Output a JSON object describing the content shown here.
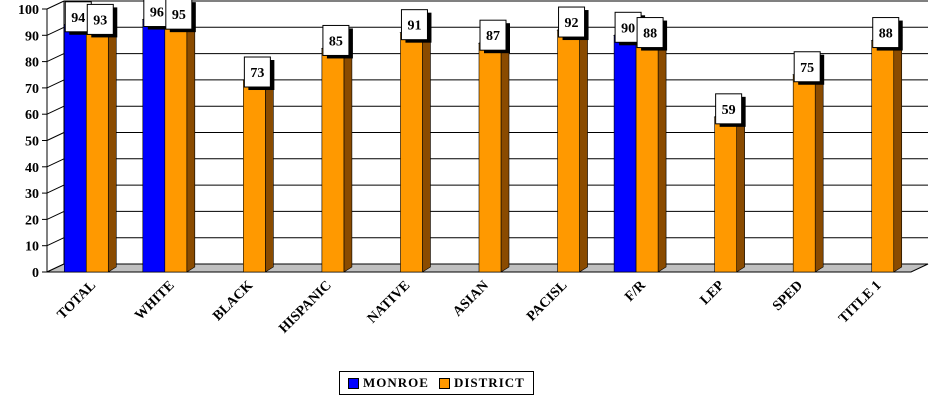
{
  "chart_data": {
    "type": "bar",
    "title": "",
    "xlabel": "",
    "ylabel": "",
    "ylim": [
      0,
      100
    ],
    "yticks": [
      "0",
      "10",
      "20",
      "30",
      "40",
      "50",
      "60",
      "70",
      "80",
      "90",
      "100"
    ],
    "grid": true,
    "three_d": true,
    "legend_position": "bottom",
    "categories": [
      "TOTAL",
      "WHITE",
      "BLACK",
      "HISPANIC",
      "NATIVE",
      "ASIAN",
      "PACISL",
      "F/R",
      "LEP",
      "SPED",
      "TITLE 1"
    ],
    "series": [
      {
        "name": "MONROE",
        "color": "#0000ff",
        "side_color": "#000080",
        "values": [
          94,
          96,
          null,
          null,
          null,
          null,
          null,
          90,
          null,
          null,
          null
        ]
      },
      {
        "name": "DISTRICT",
        "color": "#ff9900",
        "side_color": "#8a4b00",
        "values": [
          93,
          95,
          73,
          85,
          91,
          87,
          92,
          88,
          59,
          75,
          88
        ]
      }
    ]
  }
}
